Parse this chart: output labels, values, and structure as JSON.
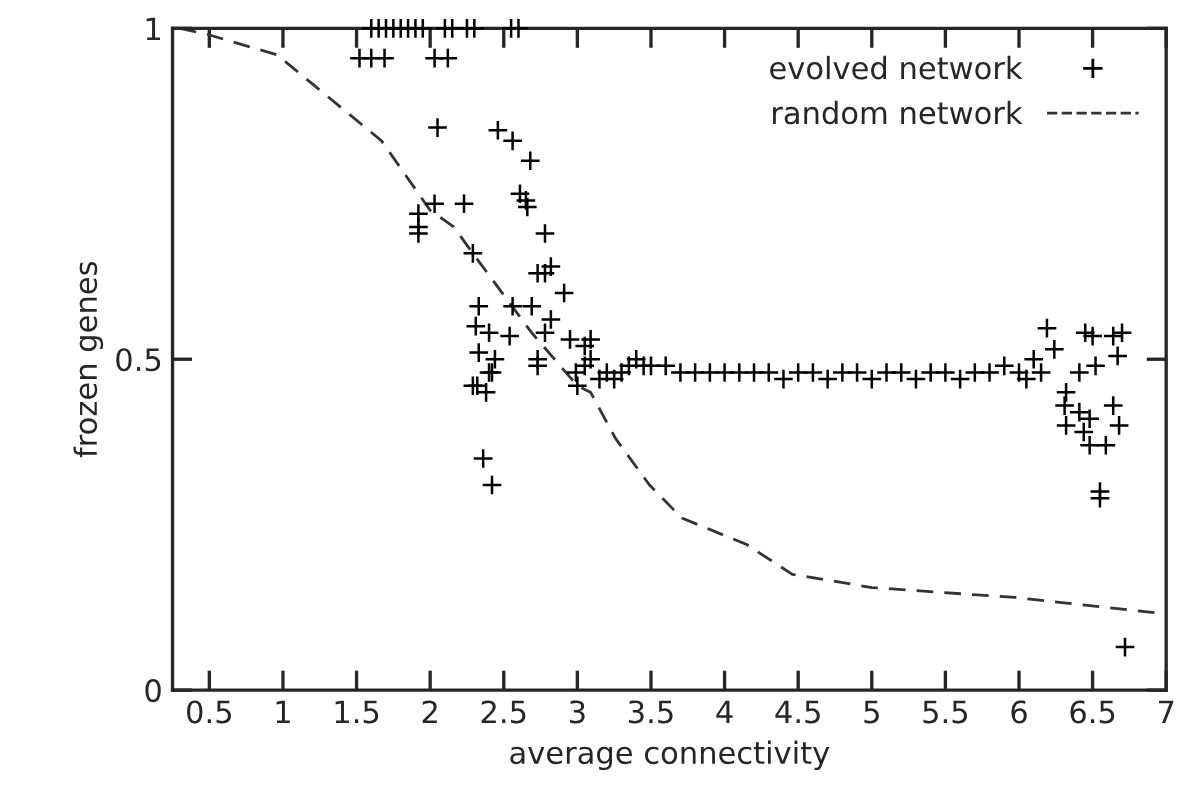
{
  "chart_data": {
    "type": "scatter",
    "xlabel": "average connectivity",
    "ylabel": "frozen genes",
    "xlim": [
      0.25,
      7
    ],
    "ylim": [
      0,
      1
    ],
    "xticks": [
      0.5,
      1,
      1.5,
      2,
      2.5,
      3,
      3.5,
      4,
      4.5,
      5,
      5.5,
      6,
      6.5,
      7
    ],
    "yticks": [
      0,
      0.5,
      1
    ],
    "grid": false,
    "legend": "top right",
    "series": [
      {
        "name": "evolved network",
        "marker": "cross",
        "color": "#000000",
        "x": [
          1.6,
          1.65,
          1.7,
          1.75,
          1.8,
          1.85,
          1.9,
          1.95,
          2.1,
          2.15,
          2.25,
          2.3,
          2.55,
          2.6,
          1.52,
          1.6,
          1.69,
          2.03,
          2.12,
          2.05,
          2.46,
          2.56,
          2.68,
          2.61,
          2.65,
          2.66,
          1.92,
          1.92,
          1.92,
          2.03,
          2.23,
          2.78,
          2.29,
          2.82,
          2.78,
          2.73,
          2.91,
          2.33,
          2.31,
          2.33,
          2.32,
          2.56,
          2.69,
          2.4,
          2.54,
          2.44,
          2.4,
          2.82,
          2.78,
          2.73,
          2.95,
          3.05,
          3.09,
          2.99,
          2.36,
          2.42,
          2.29,
          2.38,
          2.42,
          2.73,
          3.0,
          3.09,
          3.05,
          3.15,
          3.2,
          3.25,
          3.3,
          3.35,
          3.4,
          3.45,
          3.5,
          3.6,
          3.7,
          3.8,
          3.9,
          4.0,
          4.1,
          4.2,
          4.3,
          4.4,
          4.5,
          4.6,
          4.7,
          4.8,
          4.9,
          5.0,
          5.1,
          5.2,
          5.3,
          5.4,
          5.5,
          5.6,
          5.7,
          5.8,
          5.9,
          6.0,
          6.05,
          6.1,
          6.15,
          6.19,
          6.24,
          6.5,
          6.45,
          6.64,
          6.7,
          6.67,
          6.52,
          6.41,
          6.32,
          6.31,
          6.32,
          6.41,
          6.48,
          6.44,
          6.64,
          6.68,
          6.48,
          6.59,
          6.55,
          6.55,
          6.72
        ],
        "values": [
          1,
          1,
          1,
          1,
          1,
          1,
          1,
          1,
          1,
          1,
          1,
          1,
          1,
          1,
          0.955,
          0.955,
          0.955,
          0.955,
          0.955,
          0.85,
          0.846,
          0.83,
          0.8,
          0.75,
          0.74,
          0.73,
          0.72,
          0.7,
          0.69,
          0.735,
          0.735,
          0.69,
          0.66,
          0.64,
          0.63,
          0.63,
          0.6,
          0.58,
          0.55,
          0.51,
          0.46,
          0.58,
          0.58,
          0.54,
          0.535,
          0.5,
          0.48,
          0.56,
          0.54,
          0.5,
          0.53,
          0.52,
          0.5,
          0.48,
          0.35,
          0.31,
          0.46,
          0.45,
          0.48,
          0.49,
          0.46,
          0.53,
          0.49,
          0.47,
          0.48,
          0.47,
          0.48,
          0.49,
          0.5,
          0.49,
          0.49,
          0.49,
          0.48,
          0.48,
          0.48,
          0.48,
          0.48,
          0.48,
          0.48,
          0.47,
          0.48,
          0.48,
          0.47,
          0.48,
          0.48,
          0.47,
          0.48,
          0.48,
          0.47,
          0.48,
          0.48,
          0.47,
          0.48,
          0.48,
          0.49,
          0.48,
          0.47,
          0.5,
          0.48,
          0.547,
          0.515,
          0.535,
          0.54,
          0.535,
          0.54,
          0.505,
          0.49,
          0.48,
          0.45,
          0.43,
          0.4,
          0.42,
          0.41,
          0.39,
          0.43,
          0.4,
          0.37,
          0.37,
          0.3,
          0.29,
          0.065
        ]
      },
      {
        "name": "random network",
        "type": "line",
        "line_style": "dashed",
        "marker": "none",
        "color": "#333333",
        "x": [
          0.3,
          0.5,
          0.96,
          1.67,
          2.0,
          2.16,
          2.29,
          2.69,
          3.0,
          3.09,
          3.26,
          3.49,
          3.71,
          4.15,
          4.46,
          5.0,
          5.97,
          7.0
        ],
        "values": [
          1.0,
          0.99,
          0.96,
          0.83,
          0.725,
          0.7,
          0.66,
          0.54,
          0.46,
          0.45,
          0.38,
          0.31,
          0.26,
          0.22,
          0.175,
          0.155,
          0.14,
          0.115
        ]
      }
    ]
  }
}
